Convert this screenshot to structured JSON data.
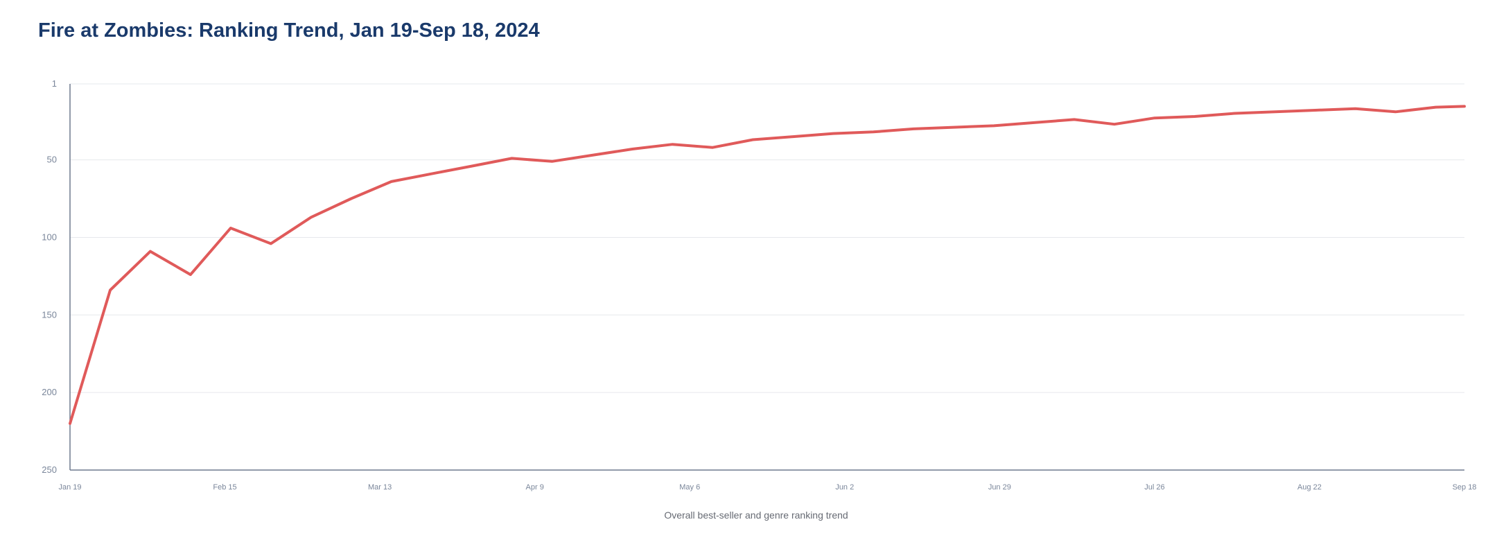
{
  "chart_data": {
    "type": "line",
    "title": "Fire at Zombies: Ranking Trend, Jan 19-Sep 18, 2024",
    "xlabel": "Overall best-seller and genre ranking trend",
    "ylabel": "",
    "y_reversed": true,
    "ylim": [
      1,
      250
    ],
    "y_ticks": [
      1,
      50,
      100,
      150,
      200,
      250
    ],
    "x_range": [
      "2024-01-19",
      "2024-09-18"
    ],
    "x_ticks": [
      {
        "date": "2024-01-19",
        "label": "Jan 19"
      },
      {
        "date": "2024-02-15",
        "label": "Feb 15"
      },
      {
        "date": "2024-03-13",
        "label": "Mar 13"
      },
      {
        "date": "2024-04-09",
        "label": "Apr 9"
      },
      {
        "date": "2024-05-06",
        "label": "May 6"
      },
      {
        "date": "2024-06-02",
        "label": "Jun 2"
      },
      {
        "date": "2024-06-29",
        "label": "Jun 29"
      },
      {
        "date": "2024-07-26",
        "label": "Jul 26"
      },
      {
        "date": "2024-08-22",
        "label": "Aug 22"
      },
      {
        "date": "2024-09-18",
        "label": "Sep 18"
      }
    ],
    "grid": true,
    "series": [
      {
        "color": "#e05a5a",
        "points": [
          {
            "x": "2024-01-19",
            "y": 220
          },
          {
            "x": "2024-01-26",
            "y": 134
          },
          {
            "x": "2024-02-02",
            "y": 109
          },
          {
            "x": "2024-02-09",
            "y": 124
          },
          {
            "x": "2024-02-16",
            "y": 94
          },
          {
            "x": "2024-02-23",
            "y": 104
          },
          {
            "x": "2024-03-01",
            "y": 87
          },
          {
            "x": "2024-03-08",
            "y": 75
          },
          {
            "x": "2024-03-15",
            "y": 64
          },
          {
            "x": "2024-03-22",
            "y": 59
          },
          {
            "x": "2024-03-29",
            "y": 54
          },
          {
            "x": "2024-04-05",
            "y": 49
          },
          {
            "x": "2024-04-12",
            "y": 51
          },
          {
            "x": "2024-04-19",
            "y": 47
          },
          {
            "x": "2024-04-26",
            "y": 43
          },
          {
            "x": "2024-05-03",
            "y": 40
          },
          {
            "x": "2024-05-10",
            "y": 42
          },
          {
            "x": "2024-05-17",
            "y": 37
          },
          {
            "x": "2024-05-24",
            "y": 35
          },
          {
            "x": "2024-05-31",
            "y": 33
          },
          {
            "x": "2024-06-07",
            "y": 32
          },
          {
            "x": "2024-06-14",
            "y": 30
          },
          {
            "x": "2024-06-21",
            "y": 29
          },
          {
            "x": "2024-06-28",
            "y": 28
          },
          {
            "x": "2024-07-05",
            "y": 26
          },
          {
            "x": "2024-07-12",
            "y": 24
          },
          {
            "x": "2024-07-19",
            "y": 27
          },
          {
            "x": "2024-07-26",
            "y": 23
          },
          {
            "x": "2024-08-02",
            "y": 22
          },
          {
            "x": "2024-08-09",
            "y": 20
          },
          {
            "x": "2024-08-16",
            "y": 19
          },
          {
            "x": "2024-08-23",
            "y": 18
          },
          {
            "x": "2024-08-30",
            "y": 17
          },
          {
            "x": "2024-09-06",
            "y": 19
          },
          {
            "x": "2024-09-13",
            "y": 16
          },
          {
            "x": "2024-09-18",
            "y": 15.5
          }
        ]
      }
    ]
  }
}
